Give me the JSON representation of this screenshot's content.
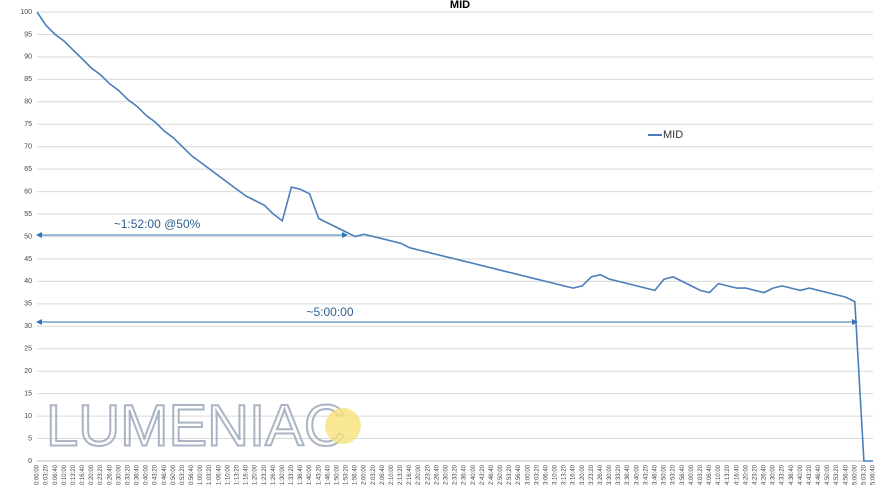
{
  "chart_data": {
    "type": "line",
    "title": "MID",
    "categories": [
      "0:00:00",
      "0:03:20",
      "0:06:40",
      "0:10:00",
      "0:13:20",
      "0:16:40",
      "0:20:00",
      "0:23:20",
      "0:26:40",
      "0:30:00",
      "0:33:20",
      "0:36:40",
      "0:40:00",
      "0:43:20",
      "0:46:40",
      "0:50:00",
      "0:53:20",
      "0:56:40",
      "1:00:00",
      "1:03:20",
      "1:06:40",
      "1:10:00",
      "1:13:20",
      "1:16:40",
      "1:20:00",
      "1:23:20",
      "1:26:40",
      "1:30:00",
      "1:33:20",
      "1:36:40",
      "1:40:00",
      "1:43:20",
      "1:46:40",
      "1:50:00",
      "1:53:20",
      "1:56:40",
      "2:00:00",
      "2:03:20",
      "2:06:40",
      "2:10:00",
      "2:13:20",
      "2:16:40",
      "2:20:00",
      "2:23:20",
      "2:26:40",
      "2:30:00",
      "2:33:20",
      "2:36:40",
      "2:40:00",
      "2:43:20",
      "2:46:40",
      "2:50:00",
      "2:53:20",
      "2:56:40",
      "3:00:00",
      "3:03:20",
      "3:06:40",
      "3:10:00",
      "3:13:20",
      "3:16:40",
      "3:20:00",
      "3:23:20",
      "3:26:40",
      "3:30:00",
      "3:33:20",
      "3:36:40",
      "3:40:00",
      "3:43:20",
      "3:46:40",
      "3:50:00",
      "3:53:20",
      "3:56:40",
      "4:00:00",
      "4:03:20",
      "4:06:40",
      "4:10:00",
      "4:13:20",
      "4:16:40",
      "4:20:00",
      "4:23:20",
      "4:26:40",
      "4:30:00",
      "4:33:20",
      "4:36:40",
      "4:40:00",
      "4:43:20",
      "4:46:40",
      "4:50:00",
      "4:53:20",
      "4:56:40",
      "5:00:00",
      "5:03:20",
      "5:06:40"
    ],
    "series": [
      {
        "name": "MID",
        "color": "#4a7ebb",
        "values": [
          100,
          97,
          95,
          93.5,
          91.5,
          89.5,
          87.5,
          86,
          84,
          82.5,
          80.5,
          79,
          77,
          75.5,
          73.5,
          72,
          70,
          68,
          66.5,
          65,
          63.5,
          62,
          60.5,
          59,
          58,
          57,
          55,
          53.5,
          61,
          60.5,
          59.5,
          54,
          53,
          52,
          51,
          50,
          50.5,
          50,
          49.5,
          49,
          48.5,
          47.5,
          47,
          46.5,
          46,
          45.5,
          45,
          44.5,
          44,
          43.5,
          43,
          42.5,
          42,
          41.5,
          41,
          40.5,
          40,
          39.5,
          39,
          38.5,
          39,
          41,
          41.5,
          40.5,
          40,
          39.5,
          39,
          38.5,
          38,
          40.5,
          41,
          40,
          39,
          38,
          37.5,
          39.5,
          39,
          38.5,
          38.5,
          38,
          37.5,
          38.5,
          39,
          38.5,
          38,
          38.5,
          38,
          37.5,
          37,
          36.5,
          35.5,
          0,
          0
        ]
      }
    ],
    "ylim": [
      0,
      100
    ],
    "yticks": [
      0,
      5,
      10,
      15,
      20,
      25,
      30,
      35,
      40,
      45,
      50,
      55,
      60,
      65,
      70,
      75,
      80,
      85,
      90,
      95,
      100
    ],
    "grid": true,
    "annotations": [
      "~1:52:00 @50%",
      "~5:00:00"
    ],
    "watermark": "LUMENIAC"
  }
}
